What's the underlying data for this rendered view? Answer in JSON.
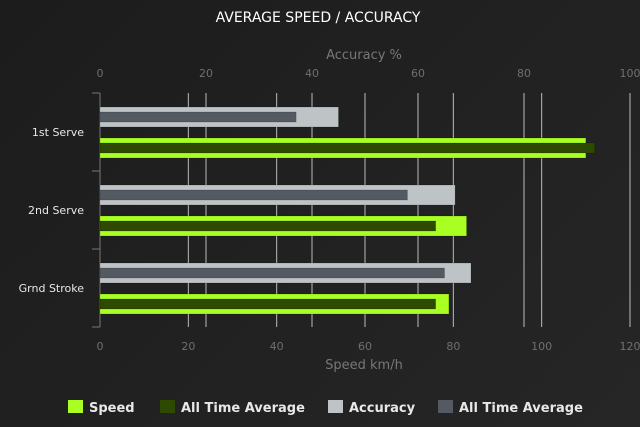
{
  "chart_data": {
    "type": "bar",
    "orientation": "horizontal",
    "title": "AVERAGE SPEED / ACCURACY",
    "categories": [
      "1st Serve",
      "2nd Serve",
      "Grnd Stroke"
    ],
    "x_bottom": {
      "label": "Speed km/h",
      "range": [
        0,
        120
      ],
      "ticks": [
        0,
        20,
        40,
        60,
        80,
        100,
        120
      ]
    },
    "x_top": {
      "label": "Accuracy %",
      "range": [
        0,
        100
      ],
      "ticks": [
        0,
        20,
        40,
        60,
        80,
        100
      ]
    },
    "grid": true,
    "legend_position": "bottom",
    "series": [
      {
        "name": "Speed",
        "axis": "bottom",
        "color": "#aaff22",
        "values": [
          110,
          83,
          79
        ]
      },
      {
        "name": "All Time Average",
        "axis": "bottom",
        "color": "#2e4a00",
        "values": [
          112,
          76,
          76
        ]
      },
      {
        "name": "Accuracy",
        "axis": "top",
        "color": "#bec3c6",
        "values": [
          45,
          67,
          70
        ]
      },
      {
        "name": "All Time Average",
        "axis": "top",
        "color": "#535a61",
        "values": [
          37,
          58,
          65
        ]
      }
    ]
  }
}
